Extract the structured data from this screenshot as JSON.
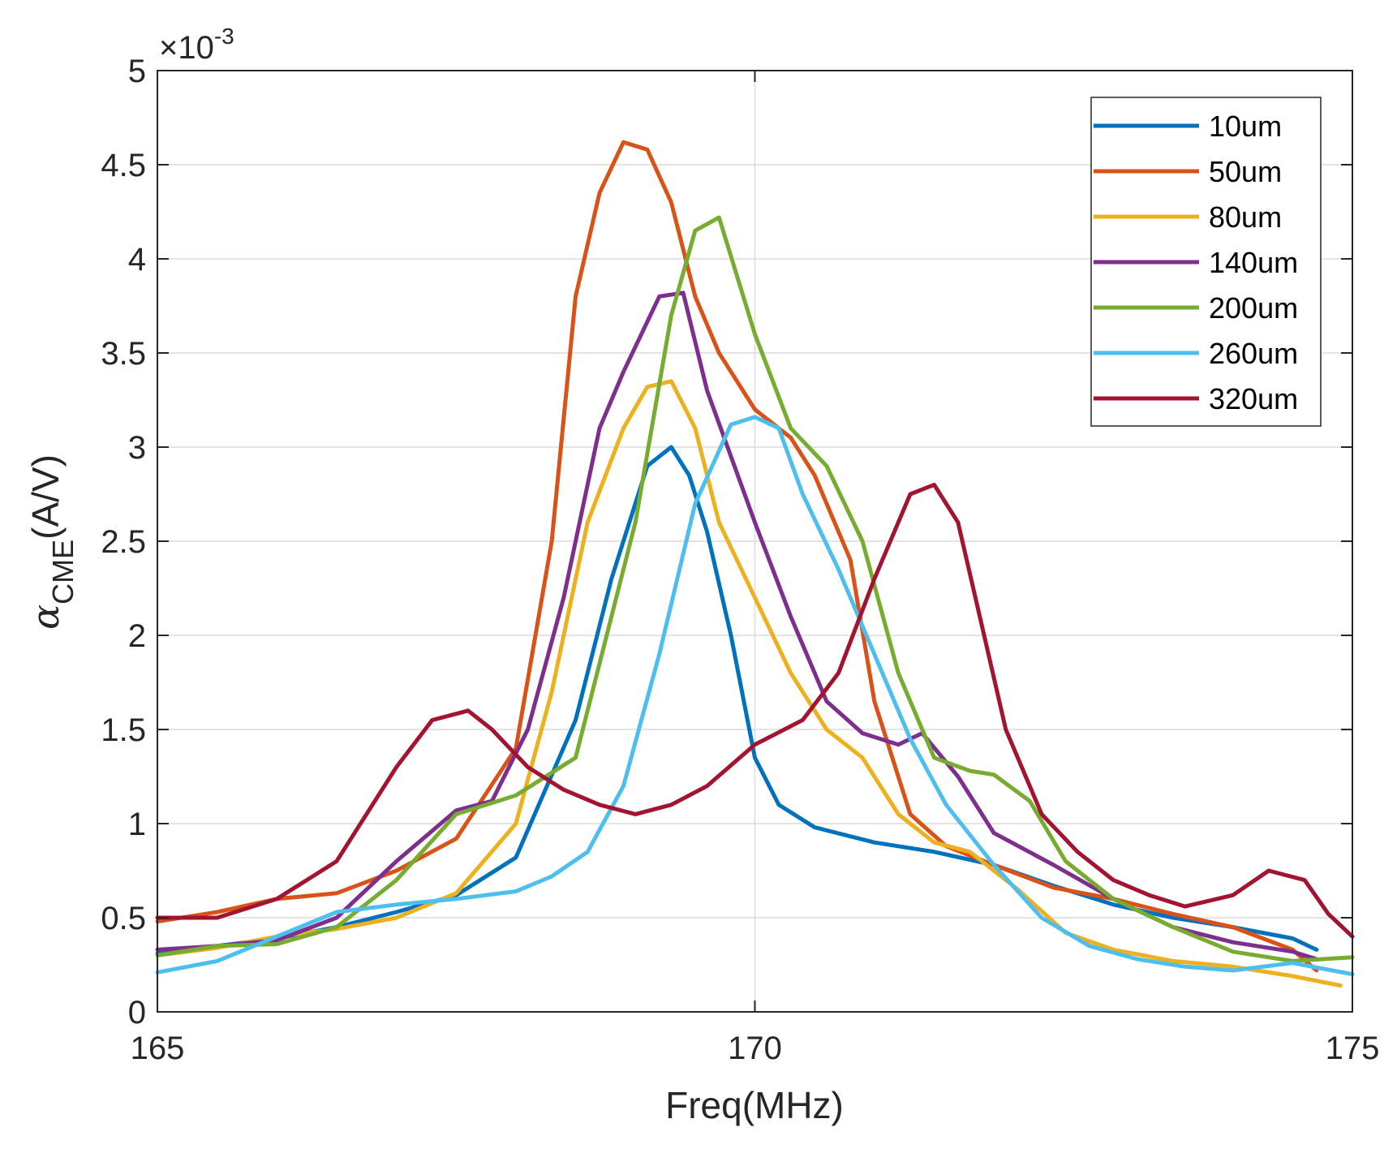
{
  "chart_data": {
    "type": "line",
    "title": "",
    "xlabel": "Freq(MHz)",
    "ylabel_symbol": "α",
    "ylabel_subscript": "CME",
    "ylabel_unit": "(A/V)",
    "xlim": [
      165,
      175
    ],
    "ylim": [
      0,
      5
    ],
    "y_multiplier": "×10",
    "y_exponent": "-3",
    "xticks": [
      "165",
      "170",
      "175"
    ],
    "yticks": [
      "0",
      "0.5",
      "1",
      "1.5",
      "2",
      "2.5",
      "3",
      "3.5",
      "4",
      "4.5",
      "5"
    ],
    "grid": true,
    "legend_position": "top-right",
    "series": [
      {
        "name": "10um",
        "color": "#0072BD",
        "x": [
          165,
          165.5,
          166,
          166.5,
          167,
          167.5,
          168,
          168.5,
          168.8,
          169.1,
          169.3,
          169.45,
          169.6,
          169.8,
          170,
          170.2,
          170.5,
          171,
          171.5,
          172,
          172.5,
          173,
          173.5,
          174,
          174.5,
          174.7
        ],
        "values": [
          0.31,
          0.35,
          0.39,
          0.45,
          0.53,
          0.62,
          0.82,
          1.55,
          2.3,
          2.9,
          3.0,
          2.85,
          2.55,
          2.0,
          1.35,
          1.1,
          0.98,
          0.9,
          0.85,
          0.78,
          0.67,
          0.57,
          0.5,
          0.45,
          0.39,
          0.33
        ]
      },
      {
        "name": "50um",
        "color": "#D95319",
        "x": [
          165,
          165.5,
          166,
          166.5,
          167,
          167.5,
          168,
          168.3,
          168.5,
          168.7,
          168.9,
          169.1,
          169.3,
          169.5,
          169.7,
          170,
          170.3,
          170.5,
          170.8,
          171,
          171.3,
          171.6,
          172,
          172.5,
          173,
          173.5,
          174,
          174.5,
          174.7
        ],
        "values": [
          0.48,
          0.53,
          0.6,
          0.63,
          0.75,
          0.92,
          1.4,
          2.5,
          3.8,
          4.35,
          4.62,
          4.58,
          4.3,
          3.8,
          3.5,
          3.2,
          3.05,
          2.85,
          2.4,
          1.65,
          1.05,
          0.88,
          0.78,
          0.66,
          0.6,
          0.52,
          0.45,
          0.33,
          0.22
        ]
      },
      {
        "name": "80um",
        "color": "#EDB120",
        "x": [
          165,
          165.5,
          166,
          166.5,
          167,
          167.5,
          168,
          168.3,
          168.6,
          168.9,
          169.1,
          169.3,
          169.5,
          169.7,
          170,
          170.3,
          170.6,
          170.9,
          171.2,
          171.5,
          171.8,
          172.2,
          172.6,
          173,
          173.5,
          174,
          174.5,
          174.9
        ],
        "values": [
          0.3,
          0.34,
          0.4,
          0.44,
          0.5,
          0.63,
          1.0,
          1.7,
          2.6,
          3.1,
          3.32,
          3.35,
          3.1,
          2.6,
          2.2,
          1.8,
          1.5,
          1.35,
          1.05,
          0.9,
          0.85,
          0.65,
          0.42,
          0.33,
          0.27,
          0.24,
          0.19,
          0.14
        ]
      },
      {
        "name": "140um",
        "color": "#7E2F8E",
        "x": [
          165,
          165.5,
          166,
          166.5,
          167,
          167.5,
          167.8,
          168.1,
          168.4,
          168.7,
          168.9,
          169.2,
          169.4,
          169.6,
          170,
          170.3,
          170.6,
          170.9,
          171.2,
          171.4,
          171.7,
          172,
          172.5,
          173,
          173.5,
          174,
          174.5,
          174.7
        ],
        "values": [
          0.33,
          0.35,
          0.38,
          0.5,
          0.8,
          1.07,
          1.12,
          1.5,
          2.2,
          3.1,
          3.4,
          3.8,
          3.82,
          3.3,
          2.6,
          2.1,
          1.65,
          1.48,
          1.42,
          1.48,
          1.25,
          0.95,
          0.78,
          0.6,
          0.45,
          0.37,
          0.32,
          0.28
        ]
      },
      {
        "name": "200um",
        "color": "#77AC30",
        "x": [
          165,
          165.5,
          166,
          166.5,
          167,
          167.5,
          168,
          168.5,
          169,
          169.3,
          169.5,
          169.7,
          170,
          170.3,
          170.6,
          170.9,
          171.2,
          171.5,
          171.8,
          172,
          172.3,
          172.6,
          173,
          173.5,
          174,
          174.5,
          175
        ],
        "values": [
          0.3,
          0.35,
          0.36,
          0.45,
          0.7,
          1.05,
          1.15,
          1.35,
          2.6,
          3.7,
          4.15,
          4.22,
          3.6,
          3.1,
          2.9,
          2.5,
          1.8,
          1.35,
          1.28,
          1.26,
          1.12,
          0.8,
          0.6,
          0.45,
          0.32,
          0.27,
          0.29
        ]
      },
      {
        "name": "260um",
        "color": "#4DBEEE",
        "x": [
          165,
          165.5,
          166,
          166.5,
          167,
          167.5,
          168,
          168.3,
          168.6,
          168.9,
          169.2,
          169.5,
          169.8,
          170,
          170.2,
          170.4,
          170.7,
          171,
          171.3,
          171.6,
          172,
          172.4,
          172.8,
          173.2,
          173.6,
          174,
          174.5,
          175
        ],
        "values": [
          0.21,
          0.27,
          0.4,
          0.53,
          0.57,
          0.6,
          0.64,
          0.72,
          0.85,
          1.2,
          1.9,
          2.7,
          3.12,
          3.16,
          3.1,
          2.75,
          2.35,
          1.9,
          1.45,
          1.1,
          0.78,
          0.5,
          0.35,
          0.28,
          0.24,
          0.22,
          0.26,
          0.2
        ]
      },
      {
        "name": "320um",
        "color": "#A2142F",
        "x": [
          165,
          165.5,
          166,
          166.5,
          167,
          167.3,
          167.6,
          167.8,
          168.1,
          168.4,
          168.7,
          169,
          169.3,
          169.6,
          170,
          170.4,
          170.7,
          171,
          171.3,
          171.5,
          171.7,
          171.9,
          172.1,
          172.4,
          172.7,
          173,
          173.3,
          173.6,
          174,
          174.3,
          174.6,
          174.8,
          175
        ],
        "values": [
          0.5,
          0.5,
          0.6,
          0.8,
          1.3,
          1.55,
          1.6,
          1.5,
          1.3,
          1.18,
          1.1,
          1.05,
          1.1,
          1.2,
          1.42,
          1.55,
          1.8,
          2.3,
          2.75,
          2.8,
          2.6,
          2.05,
          1.5,
          1.05,
          0.85,
          0.7,
          0.62,
          0.56,
          0.62,
          0.75,
          0.7,
          0.52,
          0.4
        ]
      }
    ]
  }
}
